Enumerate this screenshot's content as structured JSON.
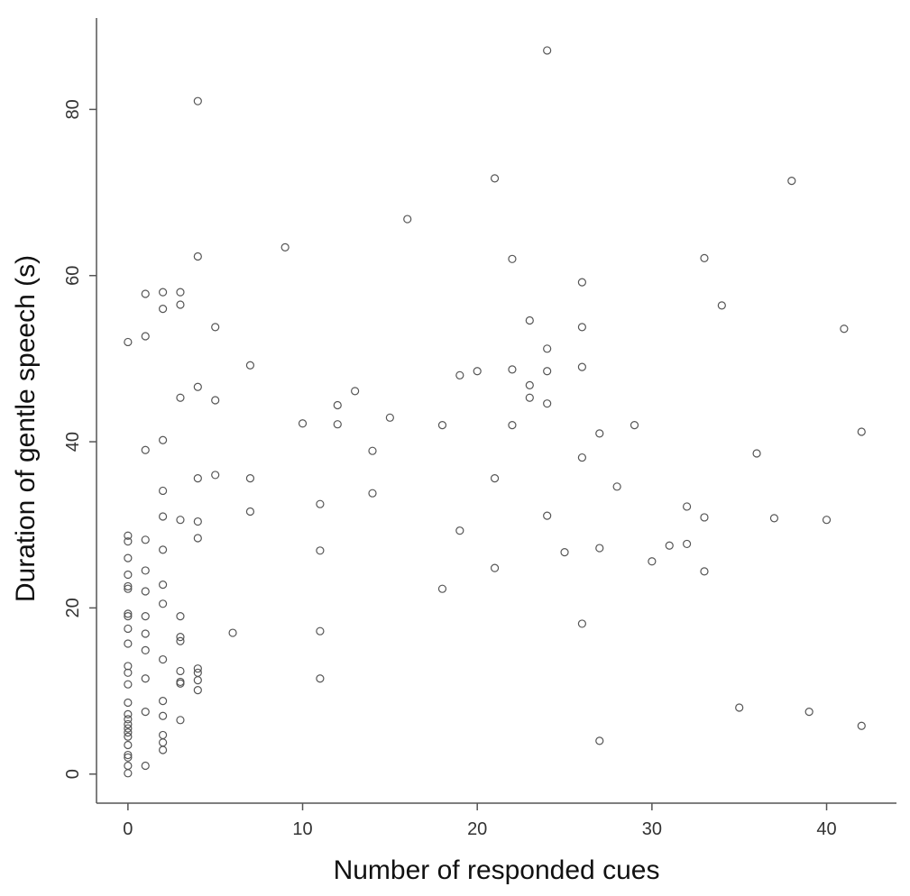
{
  "chart_data": {
    "type": "scatter",
    "title": "",
    "xlabel": "Number of responded cues",
    "ylabel": "Duration of gentle speech (s)",
    "xlim": [
      -1.8,
      44
    ],
    "ylim": [
      -3.5,
      91
    ],
    "xticks": [
      0,
      10,
      20,
      30,
      40
    ],
    "yticks": [
      0,
      20,
      40,
      60,
      80
    ],
    "grid": false,
    "legend": "none",
    "marker": "open-circle",
    "series": [
      {
        "points": [
          [
            0,
            52.0
          ],
          [
            0,
            28.7
          ],
          [
            0,
            28.0
          ],
          [
            0,
            26.0
          ],
          [
            0,
            24.0
          ],
          [
            0,
            22.6
          ],
          [
            0,
            22.3
          ],
          [
            0,
            19.3
          ],
          [
            0,
            19.0
          ],
          [
            0,
            17.5
          ],
          [
            0,
            15.7
          ],
          [
            0,
            13.0
          ],
          [
            0,
            12.2
          ],
          [
            0,
            10.8
          ],
          [
            0,
            8.6
          ],
          [
            0,
            7.2
          ],
          [
            0,
            6.6
          ],
          [
            0,
            6.0
          ],
          [
            0,
            5.5
          ],
          [
            0,
            5.0
          ],
          [
            0,
            4.5
          ],
          [
            0,
            3.5
          ],
          [
            0,
            2.3
          ],
          [
            0,
            2.0
          ],
          [
            0,
            1.0
          ],
          [
            0,
            0.1
          ],
          [
            1,
            57.8
          ],
          [
            1,
            52.7
          ],
          [
            1,
            39.0
          ],
          [
            1,
            28.2
          ],
          [
            1,
            24.5
          ],
          [
            1,
            22.0
          ],
          [
            1,
            19.0
          ],
          [
            1,
            16.9
          ],
          [
            1,
            14.9
          ],
          [
            1,
            11.5
          ],
          [
            1,
            7.5
          ],
          [
            1,
            1.0
          ],
          [
            2,
            58.0
          ],
          [
            2,
            56.0
          ],
          [
            2,
            40.2
          ],
          [
            2,
            34.1
          ],
          [
            2,
            31.0
          ],
          [
            2,
            27.0
          ],
          [
            2,
            22.8
          ],
          [
            2,
            20.5
          ],
          [
            2,
            13.8
          ],
          [
            2,
            8.8
          ],
          [
            2,
            7.0
          ],
          [
            2,
            4.7
          ],
          [
            2,
            3.8
          ],
          [
            2,
            2.9
          ],
          [
            3,
            58.0
          ],
          [
            3,
            56.5
          ],
          [
            3,
            45.3
          ],
          [
            3,
            30.6
          ],
          [
            3,
            19.0
          ],
          [
            3,
            16.5
          ],
          [
            3,
            16.0
          ],
          [
            3,
            12.4
          ],
          [
            3,
            11.1
          ],
          [
            3,
            10.9
          ],
          [
            3,
            6.5
          ],
          [
            4,
            81.0
          ],
          [
            4,
            62.3
          ],
          [
            4,
            46.6
          ],
          [
            4,
            35.6
          ],
          [
            4,
            30.4
          ],
          [
            4,
            28.4
          ],
          [
            4,
            12.7
          ],
          [
            4,
            12.2
          ],
          [
            4,
            11.3
          ],
          [
            4,
            10.1
          ],
          [
            5,
            53.8
          ],
          [
            5,
            45.0
          ],
          [
            5,
            36.0
          ],
          [
            6,
            17.0
          ],
          [
            7,
            49.2
          ],
          [
            7,
            35.6
          ],
          [
            7,
            31.6
          ],
          [
            9,
            63.4
          ],
          [
            10,
            42.2
          ],
          [
            11,
            32.5
          ],
          [
            11,
            26.9
          ],
          [
            11,
            17.2
          ],
          [
            11,
            11.5
          ],
          [
            12,
            44.4
          ],
          [
            12,
            42.1
          ],
          [
            13,
            46.1
          ],
          [
            14,
            38.9
          ],
          [
            14,
            33.8
          ],
          [
            15,
            42.9
          ],
          [
            16,
            66.8
          ],
          [
            18,
            42.0
          ],
          [
            18,
            22.3
          ],
          [
            19,
            48.0
          ],
          [
            19,
            29.3
          ],
          [
            20,
            48.5
          ],
          [
            21,
            71.7
          ],
          [
            21,
            35.6
          ],
          [
            21,
            24.8
          ],
          [
            22,
            62.0
          ],
          [
            22,
            48.7
          ],
          [
            22,
            42.0
          ],
          [
            23,
            54.6
          ],
          [
            23,
            46.8
          ],
          [
            23,
            45.3
          ],
          [
            24,
            87.1
          ],
          [
            24,
            51.2
          ],
          [
            24,
            48.5
          ],
          [
            24,
            44.6
          ],
          [
            24,
            31.1
          ],
          [
            25,
            26.7
          ],
          [
            26,
            59.2
          ],
          [
            26,
            53.8
          ],
          [
            26,
            49.0
          ],
          [
            26,
            38.1
          ],
          [
            26,
            18.1
          ],
          [
            27,
            41.0
          ],
          [
            27,
            27.2
          ],
          [
            27,
            4.0
          ],
          [
            28,
            34.6
          ],
          [
            29,
            42.0
          ],
          [
            30,
            25.6
          ],
          [
            31,
            27.5
          ],
          [
            32,
            32.2
          ],
          [
            32,
            27.7
          ],
          [
            33,
            62.1
          ],
          [
            33,
            30.9
          ],
          [
            33,
            24.4
          ],
          [
            34,
            56.4
          ],
          [
            35,
            8.0
          ],
          [
            36,
            38.6
          ],
          [
            37,
            30.8
          ],
          [
            38,
            71.4
          ],
          [
            39,
            7.5
          ],
          [
            40,
            30.6
          ],
          [
            41,
            53.6
          ],
          [
            42,
            41.2
          ],
          [
            42,
            5.8
          ]
        ]
      }
    ]
  }
}
